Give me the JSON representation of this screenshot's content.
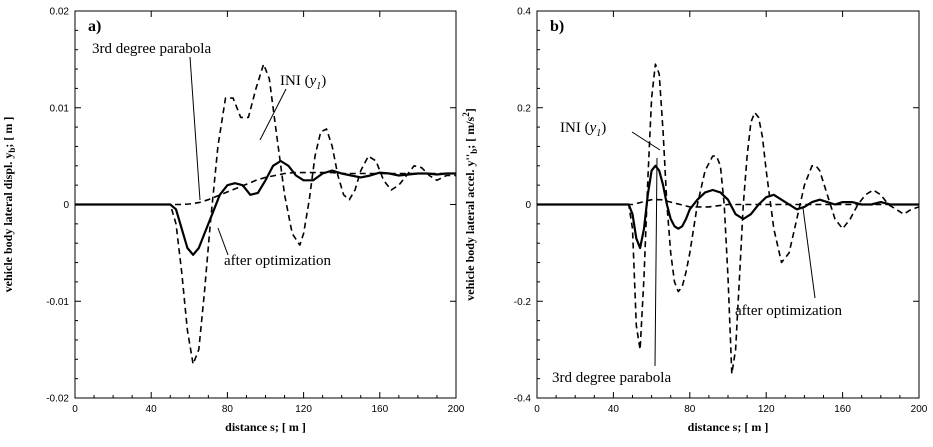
{
  "chart_data": [
    {
      "type": "line",
      "panel_label": "a)",
      "xlabel": "distance s; [ m ]",
      "ylabel_text": "vehicle body lateral displ. y",
      "ylabel_sub": "b",
      "ylabel_unit": "; [ m ]",
      "xlim": [
        0,
        200
      ],
      "ylim": [
        -0.02,
        0.02
      ],
      "x_ticks": [
        0,
        40,
        80,
        120,
        160,
        200
      ],
      "y_ticks": [
        -0.02,
        -0.01,
        0,
        0.01,
        0.02
      ],
      "y_tick_labels": [
        "-0.02",
        "-0.01",
        "0",
        "0.01",
        "0.02"
      ],
      "x_tick_labels": [
        "0",
        "40",
        "80",
        "120",
        "160",
        "200"
      ],
      "annotations": {
        "parabola": "3rd degree parabola",
        "ini": "INI (",
        "ini_var": "y",
        "ini_sub": "1",
        "ini_close": ")",
        "optimized": "after optimization"
      },
      "series": [
        {
          "key": "ini",
          "style": "dashed",
          "x": [
            0,
            50,
            53,
            56,
            59,
            62,
            65,
            68,
            71,
            75,
            79,
            83,
            87,
            91,
            95,
            99,
            102,
            106,
            110,
            114,
            118,
            120,
            123,
            126,
            129,
            132,
            135,
            138,
            141,
            144,
            147,
            150,
            154,
            158,
            162,
            166,
            170,
            174,
            178,
            182,
            186,
            190,
            195,
            200
          ],
          "y": [
            0,
            0,
            -0.002,
            -0.007,
            -0.013,
            -0.0165,
            -0.015,
            -0.009,
            -0.002,
            0.006,
            0.011,
            0.011,
            0.009,
            0.009,
            0.012,
            0.0145,
            0.013,
            0.007,
            0.001,
            -0.003,
            -0.0042,
            -0.003,
            0.0005,
            0.005,
            0.0075,
            0.0078,
            0.006,
            0.003,
            0.001,
            0.0005,
            0.0015,
            0.0035,
            0.005,
            0.0045,
            0.0025,
            0.0015,
            0.002,
            0.003,
            0.004,
            0.0038,
            0.003,
            0.0025,
            0.003,
            0.003
          ]
        },
        {
          "key": "optimized",
          "style": "solid",
          "x": [
            0,
            50,
            53,
            56,
            59,
            62,
            65,
            68,
            72,
            76,
            80,
            84,
            88,
            92,
            96,
            100,
            104,
            108,
            112,
            116,
            120,
            125,
            130,
            135,
            140,
            145,
            150,
            155,
            160,
            165,
            170,
            175,
            180,
            185,
            190,
            195,
            200
          ],
          "y": [
            0,
            0,
            -0.0005,
            -0.0025,
            -0.0045,
            -0.0052,
            -0.0045,
            -0.003,
            -0.001,
            0.001,
            0.002,
            0.0022,
            0.002,
            0.001,
            0.0012,
            0.0025,
            0.004,
            0.0045,
            0.004,
            0.003,
            0.0025,
            0.0025,
            0.0032,
            0.0035,
            0.0032,
            0.003,
            0.0028,
            0.003,
            0.0033,
            0.0032,
            0.003,
            0.0031,
            0.0032,
            0.0032,
            0.0031,
            0.0032,
            0.0032
          ]
        },
        {
          "key": "parabola",
          "style": "dashed",
          "x": [
            0,
            50,
            55,
            60,
            65,
            70,
            75,
            80,
            85,
            90,
            95,
            100,
            105,
            110,
            115,
            120,
            125,
            130,
            135,
            140,
            150,
            160,
            170,
            180,
            190,
            200
          ],
          "y": [
            0,
            0,
            0,
            5e-05,
            0.0002,
            0.0005,
            0.0009,
            0.0013,
            0.0017,
            0.0021,
            0.0025,
            0.0028,
            0.003,
            0.0032,
            0.0033,
            0.0033,
            0.0033,
            0.0033,
            0.0033,
            0.0032,
            0.0032,
            0.0032,
            0.0032,
            0.0032,
            0.0032,
            0.0032
          ]
        }
      ]
    },
    {
      "type": "line",
      "panel_label": "b)",
      "xlabel": "distance s; [ m ]",
      "ylabel_text": "vehicle body lateral accel. y''",
      "ylabel_sub": "b",
      "ylabel_unit": "; [ m/s",
      "ylabel_sup": "2",
      "ylabel_end": "]",
      "xlim": [
        0,
        200
      ],
      "ylim": [
        -0.4,
        0.4
      ],
      "x_ticks": [
        0,
        40,
        80,
        120,
        160,
        200
      ],
      "y_ticks": [
        -0.4,
        -0.2,
        0,
        0.2,
        0.4
      ],
      "y_tick_labels": [
        "-0.4",
        "-0.2",
        "0",
        "0.2",
        "0.4"
      ],
      "x_tick_labels": [
        "0",
        "40",
        "80",
        "120",
        "160",
        "200"
      ],
      "annotations": {
        "parabola": "3rd degree parabola",
        "ini": "INI (",
        "ini_var": "y",
        "ini_sub": "1",
        "ini_close": ")",
        "optimized": "after optimization"
      },
      "series": [
        {
          "key": "ini",
          "style": "dashed",
          "x": [
            0,
            48,
            50,
            52,
            54,
            56,
            58,
            60,
            62,
            64,
            66,
            68,
            70,
            72,
            74,
            76,
            78,
            80,
            84,
            88,
            92,
            94,
            96,
            98,
            100,
            102,
            104,
            106,
            108,
            110,
            112,
            114,
            116,
            118,
            120,
            124,
            128,
            132,
            136,
            140,
            144,
            146,
            148,
            152,
            156,
            160,
            164,
            168,
            172,
            176,
            180,
            184,
            188,
            192,
            196,
            200
          ],
          "y": [
            0,
            0,
            -0.05,
            -0.25,
            -0.3,
            -0.15,
            0.05,
            0.22,
            0.29,
            0.27,
            0.15,
            0.0,
            -0.1,
            -0.16,
            -0.18,
            -0.17,
            -0.14,
            -0.1,
            0.0,
            0.07,
            0.1,
            0.1,
            0.08,
            0.0,
            -0.15,
            -0.35,
            -0.3,
            -0.15,
            0.0,
            0.1,
            0.17,
            0.19,
            0.18,
            0.14,
            0.07,
            -0.05,
            -0.12,
            -0.1,
            -0.03,
            0.04,
            0.08,
            0.08,
            0.07,
            0.02,
            -0.03,
            -0.05,
            -0.03,
            0.0,
            0.02,
            0.03,
            0.02,
            0.0,
            -0.01,
            -0.02,
            -0.01,
            -0.005
          ]
        },
        {
          "key": "optimized",
          "style": "solid",
          "x": [
            0,
            48,
            50,
            52,
            54,
            56,
            58,
            60,
            62,
            64,
            66,
            68,
            70,
            72,
            74,
            76,
            78,
            80,
            84,
            88,
            92,
            96,
            100,
            104,
            108,
            112,
            116,
            120,
            124,
            128,
            132,
            136,
            140,
            144,
            148,
            152,
            156,
            160,
            165,
            170,
            175,
            180,
            185,
            190,
            195,
            200
          ],
          "y": [
            0,
            0,
            -0.02,
            -0.07,
            -0.09,
            -0.05,
            0.02,
            0.07,
            0.08,
            0.07,
            0.04,
            0.0,
            -0.03,
            -0.045,
            -0.05,
            -0.045,
            -0.03,
            -0.01,
            0.01,
            0.025,
            0.03,
            0.025,
            0.01,
            -0.02,
            -0.03,
            -0.02,
            0.0,
            0.015,
            0.02,
            0.01,
            0.0,
            -0.01,
            -0.005,
            0.005,
            0.01,
            0.005,
            0.0,
            0.005,
            0.005,
            0.0,
            0.0,
            0.005,
            0.0,
            0.0,
            0.0,
            0.0
          ]
        },
        {
          "key": "parabola",
          "style": "dashed",
          "x": [
            0,
            50,
            55,
            60,
            65,
            70,
            75,
            80,
            90,
            100,
            110,
            120,
            130,
            140,
            150,
            160,
            170,
            180,
            190,
            200
          ],
          "y": [
            0,
            0,
            0.005,
            0.01,
            0.01,
            0.005,
            0.0,
            -0.005,
            -0.005,
            0.0,
            0.0,
            0.0,
            0.0,
            0.0,
            0.0,
            0.0,
            0.0,
            0.0,
            0.0,
            0.0
          ]
        }
      ]
    }
  ]
}
